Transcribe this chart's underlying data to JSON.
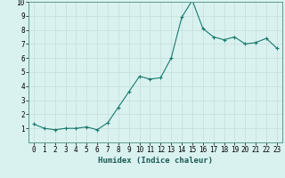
{
  "x": [
    0,
    1,
    2,
    3,
    4,
    5,
    6,
    7,
    8,
    9,
    10,
    11,
    12,
    13,
    14,
    15,
    16,
    17,
    18,
    19,
    20,
    21,
    22,
    23
  ],
  "y": [
    1.3,
    1.0,
    0.9,
    1.0,
    1.0,
    1.1,
    0.9,
    1.4,
    2.5,
    3.6,
    4.7,
    4.5,
    4.6,
    6.0,
    8.9,
    10.1,
    8.1,
    7.5,
    7.3,
    7.5,
    7.0,
    7.1,
    7.4,
    6.7
  ],
  "line_color": "#1a7a6e",
  "marker": "+",
  "marker_size": 3,
  "bg_color": "#d9f2f0",
  "grid_color": "#c8e0de",
  "xlabel": "Humidex (Indice chaleur)",
  "ylabel": "",
  "ylim": [
    0,
    10
  ],
  "xlim": [
    -0.5,
    23.5
  ],
  "yticks": [
    1,
    2,
    3,
    4,
    5,
    6,
    7,
    8,
    9,
    10
  ],
  "xticks": [
    0,
    1,
    2,
    3,
    4,
    5,
    6,
    7,
    8,
    9,
    10,
    11,
    12,
    13,
    14,
    15,
    16,
    17,
    18,
    19,
    20,
    21,
    22,
    23
  ],
  "xlabel_fontsize": 6.5,
  "tick_fontsize": 5.5,
  "line_width": 0.8,
  "marker_edge_width": 0.8
}
